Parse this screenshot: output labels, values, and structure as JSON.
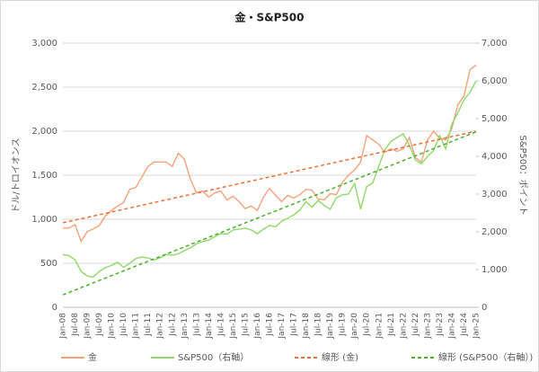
{
  "chart_data": {
    "type": "line",
    "title": "金・S&P500",
    "ylabel": "ドル/トロイオンス",
    "y2label": "S&P500：ポイント",
    "categories": [
      "Jan-08",
      null,
      "Jul-08",
      null,
      "Jan-09",
      null,
      "Jul-09",
      null,
      "Jan-10",
      null,
      "Jul-10",
      null,
      "Jan-11",
      null,
      "Jul-11",
      null,
      "Jan-12",
      null,
      "Jul-12",
      null,
      "Jan-13",
      null,
      "Jul-13",
      null,
      "Jan-14",
      null,
      "Jul-14",
      null,
      "Jan-15",
      null,
      "Jul-15",
      null,
      "Jan-16",
      null,
      "Jul-16",
      null,
      "Jan-17",
      null,
      "Jul-17",
      null,
      "Jan-18",
      null,
      "Jul-18",
      null,
      "Jan-19",
      null,
      "Jul-19",
      null,
      "Jan-20",
      null,
      "Jul-20",
      null,
      "Jan-21",
      null,
      "Jul-21",
      null,
      "Jan-22",
      null,
      "Jul-22",
      null,
      "Jan-23",
      null,
      "Jul-23",
      null,
      "Jan-24",
      null,
      "Jul-24",
      null,
      "Jan-25"
    ],
    "series": [
      {
        "name": "金",
        "color": "#f4a27a",
        "dashed": false,
        "values": [
          900,
          900,
          940,
          750,
          860,
          890,
          930,
          1040,
          1100,
          1150,
          1190,
          1340,
          1360,
          1480,
          1600,
          1650,
          1650,
          1650,
          1600,
          1750,
          1680,
          1450,
          1300,
          1320,
          1250,
          1300,
          1320,
          1220,
          1260,
          1200,
          1120,
          1150,
          1100,
          1250,
          1350,
          1270,
          1200,
          1270,
          1240,
          1280,
          1340,
          1330,
          1230,
          1220,
          1290,
          1280,
          1420,
          1500,
          1560,
          1650,
          1950,
          1900,
          1850,
          1760,
          1800,
          1770,
          1800,
          1930,
          1700,
          1650,
          1900,
          2000,
          1920,
          1900,
          2030,
          2300,
          2400,
          2700,
          2750
        ]
      },
      {
        "name": "S&P500（右軸）",
        "color": "#8fd96b",
        "dashed": false,
        "axis": "y2",
        "values": [
          1400,
          1370,
          1260,
          950,
          830,
          800,
          950,
          1050,
          1110,
          1190,
          1060,
          1170,
          1290,
          1330,
          1310,
          1250,
          1310,
          1400,
          1380,
          1420,
          1500,
          1580,
          1680,
          1740,
          1780,
          1870,
          1950,
          1940,
          2050,
          2070,
          2100,
          2050,
          1950,
          2070,
          2170,
          2130,
          2280,
          2360,
          2450,
          2580,
          2800,
          2650,
          2830,
          2700,
          2600,
          2900,
          2980,
          3000,
          3280,
          2600,
          3200,
          3300,
          3750,
          4180,
          4400,
          4500,
          4600,
          4300,
          3900,
          3800,
          4000,
          4150,
          4550,
          4200,
          4850,
          5150,
          5500,
          5700,
          6000
        ]
      },
      {
        "name": "線形 (金)",
        "color": "#e8733a",
        "dashed": true,
        "values": [
          960,
          975,
          991,
          1006,
          1021,
          1036,
          1052,
          1067,
          1082,
          1098,
          1113,
          1128,
          1144,
          1159,
          1174,
          1189,
          1205,
          1220,
          1235,
          1251,
          1266,
          1281,
          1296,
          1312,
          1327,
          1342,
          1358,
          1373,
          1388,
          1404,
          1419,
          1434,
          1449,
          1465,
          1480,
          1495,
          1511,
          1526,
          1541,
          1556,
          1572,
          1587,
          1602,
          1618,
          1633,
          1648,
          1664,
          1679,
          1694,
          1709,
          1725,
          1740,
          1755,
          1771,
          1786,
          1801,
          1816,
          1832,
          1847,
          1862,
          1878,
          1893,
          1908,
          1924,
          1939,
          1954,
          1969,
          1985,
          2000
        ]
      },
      {
        "name": "線形 (S&P500（右軸）)",
        "color": "#4eae2e",
        "dashed": true,
        "axis": "y2",
        "values": [
          330,
          394,
          457,
          521,
          584,
          648,
          711,
          775,
          838,
          902,
          965,
          1029,
          1092,
          1156,
          1219,
          1283,
          1346,
          1410,
          1473,
          1537,
          1600,
          1664,
          1728,
          1791,
          1855,
          1918,
          1982,
          2045,
          2109,
          2172,
          2236,
          2299,
          2363,
          2426,
          2490,
          2553,
          2617,
          2680,
          2744,
          2807,
          2871,
          2934,
          2998,
          3061,
          3125,
          3188,
          3252,
          3315,
          3379,
          3442,
          3506,
          3569,
          3633,
          3696,
          3760,
          3823,
          3887,
          3950,
          4014,
          4077,
          4141,
          4204,
          4268,
          4331,
          4395,
          4458,
          4522,
          4585,
          4650
        ]
      }
    ],
    "ylim": [
      0,
      3000
    ],
    "yticks": [
      0,
      500,
      {
        "value": 1000,
        "label": "1,000"
      },
      {
        "value": 1500,
        "label": "1,500"
      },
      {
        "value": 2000,
        "label": "2,000"
      },
      {
        "value": 2500,
        "label": "2,500"
      },
      {
        "value": 3000,
        "label": "3,000"
      }
    ],
    "y2lim": [
      0,
      7000
    ],
    "y2ticks": [
      0,
      {
        "value": 1000,
        "label": "1,000"
      },
      {
        "value": 2000,
        "label": "2,000"
      },
      {
        "value": 3000,
        "label": "3,000"
      },
      {
        "value": 4000,
        "label": "4,000"
      },
      {
        "value": 5000,
        "label": "5,000"
      },
      {
        "value": 6000,
        "label": "6,000"
      },
      {
        "value": 7000,
        "label": "7,000"
      }
    ],
    "grid": true,
    "legend": "bottom"
  }
}
